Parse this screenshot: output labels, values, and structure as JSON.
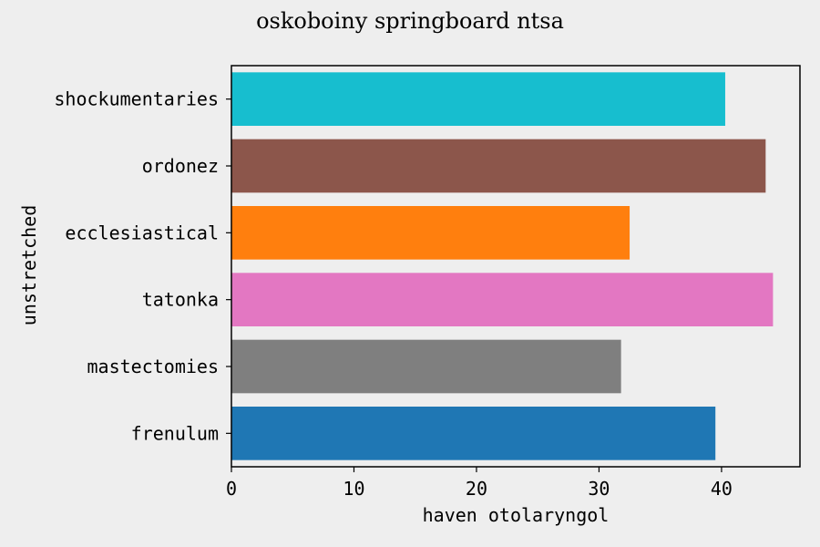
{
  "chart_data": {
    "type": "bar",
    "orientation": "horizontal",
    "title": "oskoboiny springboard ntsa",
    "xlabel": "haven otolaryngol",
    "ylabel": "unstretched",
    "categories": [
      "frenulum",
      "mastectomies",
      "tatonka",
      "ecclesiastical",
      "ordonez",
      "shockumentaries"
    ],
    "values": [
      39.5,
      31.8,
      44.2,
      32.5,
      43.6,
      40.3
    ],
    "colors": [
      "#1f77b4",
      "#7f7f7f",
      "#e377c2",
      "#ff7f0e",
      "#8c564b",
      "#17becf"
    ],
    "xlim": [
      0,
      46.4
    ],
    "xticks": [
      0,
      10,
      20,
      30,
      40
    ],
    "grid": false,
    "legend": false,
    "background": "#eeeeee"
  }
}
